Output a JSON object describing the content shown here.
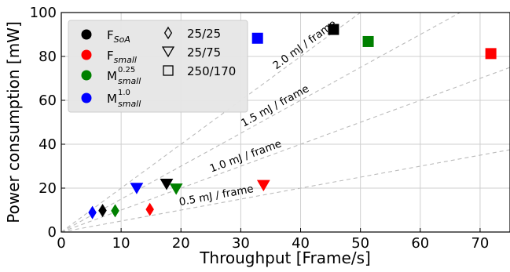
{
  "chart_data": {
    "type": "scatter",
    "xlabel": "Throughput [Frame/s]",
    "ylabel": "Power consumption [mW]",
    "xlim": [
      0,
      75
    ],
    "ylim": [
      0,
      100
    ],
    "xticks": [
      "0",
      "10",
      "20",
      "30",
      "40",
      "50",
      "60",
      "70"
    ],
    "yticks": [
      "0",
      "20",
      "40",
      "60",
      "80",
      "100"
    ],
    "grid": true,
    "legend_placement": "top-left",
    "reference_lines": [
      {
        "label": "0.5 mJ / frame",
        "slope": 0.5
      },
      {
        "label": "1.0 mJ / frame",
        "slope": 1.0
      },
      {
        "label": "1.5 mJ / frame",
        "slope": 1.5
      },
      {
        "label": "2.0 mJ / frame",
        "slope": 2.0
      }
    ],
    "series": [
      {
        "key": "soa",
        "color": "#000000",
        "label_main": "F",
        "label_sub": "SoA",
        "label_sup": "",
        "points": [
          {
            "shape": "diamond",
            "x": 6.9,
            "y": 9.8
          },
          {
            "shape": "triangle",
            "x": 17.6,
            "y": 21.8
          },
          {
            "shape": "square",
            "x": 45.5,
            "y": 92.3
          }
        ]
      },
      {
        "key": "fsmall",
        "color": "#ff0000",
        "label_main": "F",
        "label_sub": "small",
        "label_sup": "",
        "points": [
          {
            "shape": "diamond",
            "x": 14.8,
            "y": 10.3
          },
          {
            "shape": "triangle",
            "x": 33.8,
            "y": 21.2
          },
          {
            "shape": "square",
            "x": 71.8,
            "y": 81.3
          }
        ]
      },
      {
        "key": "m025",
        "color": "#008000",
        "label_main": "M",
        "label_sub": "small",
        "label_sup": "0.25",
        "points": [
          {
            "shape": "diamond",
            "x": 9.0,
            "y": 9.7
          },
          {
            "shape": "triangle",
            "x": 19.2,
            "y": 19.6
          },
          {
            "shape": "square",
            "x": 51.3,
            "y": 86.8
          }
        ]
      },
      {
        "key": "m10",
        "color": "#0000ff",
        "label_main": "M",
        "label_sub": "small",
        "label_sup": "1.0",
        "points": [
          {
            "shape": "diamond",
            "x": 5.2,
            "y": 8.9
          },
          {
            "shape": "triangle",
            "x": 12.6,
            "y": 19.9
          },
          {
            "shape": "square",
            "x": 32.8,
            "y": 88.3
          }
        ]
      }
    ],
    "shape_legend": [
      {
        "shape": "diamond",
        "label": "25/25"
      },
      {
        "shape": "triangle",
        "label": "25/75"
      },
      {
        "shape": "square",
        "label": "250/170"
      }
    ]
  }
}
